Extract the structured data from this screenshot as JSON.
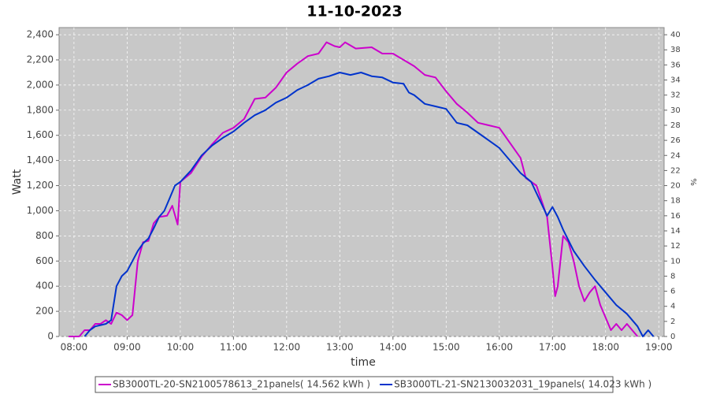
{
  "chart_data": {
    "type": "line",
    "title": "11-10-2023",
    "x_label": "time",
    "y_label": "Watt",
    "y2_label": "%",
    "xlim": [
      7.72,
      19.1
    ],
    "xticks": [
      {
        "value": 8,
        "label": "08:00"
      },
      {
        "value": 9,
        "label": "09:00"
      },
      {
        "value": 10,
        "label": "10:00"
      },
      {
        "value": 11,
        "label": "11:00"
      },
      {
        "value": 12,
        "label": "12:00"
      },
      {
        "value": 13,
        "label": "13:00"
      },
      {
        "value": 14,
        "label": "14:00"
      },
      {
        "value": 15,
        "label": "15:00"
      },
      {
        "value": 16,
        "label": "16:00"
      },
      {
        "value": 17,
        "label": "17:00"
      },
      {
        "value": 18,
        "label": "18:00"
      },
      {
        "value": 19,
        "label": "19:00"
      }
    ],
    "ylim": [
      0,
      2457
    ],
    "yticks": [
      0,
      200,
      400,
      600,
      800,
      {
        "value": 1000,
        "label": "1,000"
      },
      {
        "value": 1200,
        "label": "1,200"
      },
      {
        "value": 1400,
        "label": "1,400"
      },
      {
        "value": 1600,
        "label": "1,600"
      },
      {
        "value": 1800,
        "label": "1,800"
      },
      {
        "value": 2000,
        "label": "2,000"
      },
      {
        "value": 2200,
        "label": "2,200"
      },
      {
        "value": 2400,
        "label": "2,400"
      }
    ],
    "y2lim": [
      0,
      40.95
    ],
    "y2ticks": [
      0,
      2,
      4,
      6,
      8,
      10,
      12,
      14,
      16,
      18,
      20,
      22,
      24,
      26,
      28,
      30,
      32,
      34,
      36,
      38,
      40
    ],
    "grid": true,
    "series": [
      {
        "name": "SB3000TL-20-SN2100578613_21panels( 14.562 kWh )",
        "color": "#cc00cc",
        "x": [
          7.9,
          8.0,
          8.1,
          8.2,
          8.3,
          8.4,
          8.5,
          8.6,
          8.7,
          8.8,
          8.9,
          9.0,
          9.1,
          9.2,
          9.3,
          9.4,
          9.5,
          9.6,
          9.75,
          9.85,
          9.95,
          10.0,
          10.2,
          10.4,
          10.6,
          10.8,
          11.0,
          11.2,
          11.4,
          11.6,
          11.8,
          12.0,
          12.2,
          12.4,
          12.6,
          12.75,
          12.9,
          13.0,
          13.1,
          13.3,
          13.6,
          13.8,
          14.0,
          14.2,
          14.4,
          14.6,
          14.8,
          15.0,
          15.2,
          15.4,
          15.6,
          15.8,
          16.0,
          16.2,
          16.4,
          16.5,
          16.7,
          16.9,
          17.0,
          17.05,
          17.1,
          17.2,
          17.3,
          17.4,
          17.5,
          17.6,
          17.7,
          17.8,
          17.9,
          18.0,
          18.1,
          18.2,
          18.3,
          18.4,
          18.5,
          18.6
        ],
        "values": [
          0,
          0,
          0,
          50,
          50,
          100,
          100,
          130,
          100,
          190,
          170,
          130,
          170,
          600,
          750,
          760,
          900,
          950,
          960,
          1040,
          890,
          1230,
          1300,
          1430,
          1530,
          1620,
          1660,
          1730,
          1890,
          1900,
          1980,
          2100,
          2170,
          2230,
          2250,
          2340,
          2310,
          2300,
          2340,
          2290,
          2300,
          2250,
          2250,
          2200,
          2150,
          2080,
          2060,
          1950,
          1850,
          1780,
          1700,
          1680,
          1660,
          1540,
          1420,
          1260,
          1200,
          950,
          550,
          320,
          400,
          800,
          750,
          600,
          400,
          280,
          350,
          400,
          250,
          150,
          50,
          100,
          50,
          100,
          50,
          0
        ]
      },
      {
        "name": "SB3000TL-21-SN2130032031_19panels( 14.023 kWh )",
        "color": "#0033cc",
        "x": [
          8.2,
          8.3,
          8.4,
          8.5,
          8.6,
          8.7,
          8.8,
          8.9,
          9.0,
          9.1,
          9.2,
          9.3,
          9.4,
          9.5,
          9.6,
          9.7,
          9.8,
          9.9,
          10.0,
          10.2,
          10.4,
          10.6,
          10.8,
          11.0,
          11.2,
          11.4,
          11.6,
          11.8,
          12.0,
          12.2,
          12.4,
          12.6,
          12.8,
          13.0,
          13.2,
          13.4,
          13.6,
          13.8,
          14.0,
          14.2,
          14.3,
          14.4,
          14.6,
          14.8,
          15.0,
          15.2,
          15.4,
          15.6,
          15.8,
          16.0,
          16.2,
          16.4,
          16.6,
          16.8,
          16.9,
          17.0,
          17.1,
          17.2,
          17.4,
          17.6,
          17.8,
          18.0,
          18.2,
          18.4,
          18.6,
          18.7,
          18.8,
          18.9
        ],
        "values": [
          0,
          50,
          80,
          90,
          100,
          130,
          400,
          480,
          520,
          600,
          680,
          740,
          780,
          860,
          950,
          1000,
          1100,
          1200,
          1230,
          1320,
          1440,
          1520,
          1580,
          1630,
          1700,
          1760,
          1800,
          1860,
          1900,
          1960,
          2000,
          2050,
          2070,
          2100,
          2080,
          2100,
          2070,
          2060,
          2020,
          2010,
          1940,
          1920,
          1850,
          1830,
          1810,
          1700,
          1680,
          1620,
          1560,
          1500,
          1400,
          1300,
          1230,
          1050,
          960,
          1030,
          950,
          850,
          680,
          560,
          450,
          350,
          250,
          180,
          80,
          0,
          50,
          0
        ]
      }
    ]
  }
}
